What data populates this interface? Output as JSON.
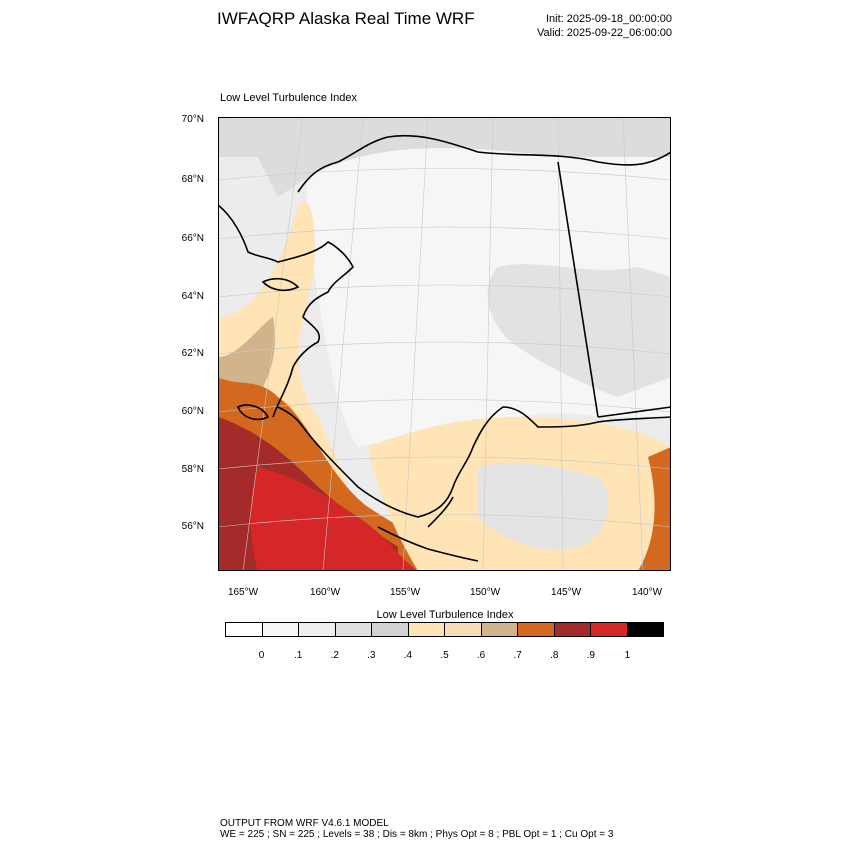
{
  "header": {
    "title": "IWFAQRP Alaska Real Time WRF",
    "init": "Init: 2025-09-18_00:00:00",
    "valid": "Valid: 2025-09-22_06:00:00"
  },
  "panel": {
    "label": "Low Level Turbulence Index"
  },
  "map": {
    "region": "Alaska",
    "lat_labels": [
      "70°N",
      "68°N",
      "66°N",
      "64°N",
      "62°N",
      "60°N",
      "58°N",
      "56°N"
    ],
    "lon_labels": [
      "165°W",
      "160°W",
      "155°W",
      "150°W",
      "145°W",
      "140°W"
    ],
    "coastline_color": "#000000",
    "graticule_color": "#c8c8c8"
  },
  "colorbar": {
    "title": "Low Level Turbulence Index",
    "ticks": [
      "0",
      ".1",
      ".2",
      ".3",
      ".4",
      ".5",
      ".6",
      ".7",
      ".8",
      ".9",
      "1"
    ],
    "colors": [
      "#ffffff",
      "#f7f7f7",
      "#eeeeee",
      "#e0e0e0",
      "#d2d2d2",
      "#ffe4b5",
      "#f5deb3",
      "#d2b48c",
      "#d2691e",
      "#a52a2a",
      "#d62728",
      "#000000"
    ]
  },
  "footer": {
    "line1": "OUTPUT FROM WRF V4.6.1 MODEL",
    "line2": "WE = 225 ; SN = 225 ; Levels = 38 ; Dis = 8km ; Phys Opt = 8 ; PBL Opt = 1 ; Cu Opt = 3"
  }
}
